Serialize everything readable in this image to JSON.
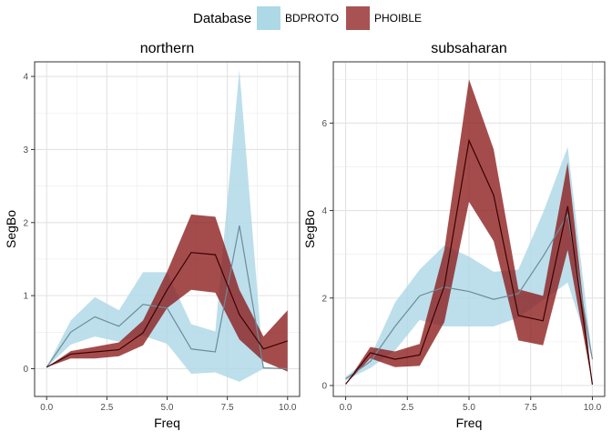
{
  "legend": {
    "title": "Database",
    "items": [
      {
        "label": "BDPROTO",
        "fill": "#add8e6",
        "line": "#6e8b99"
      },
      {
        "label": "PHOIBLE",
        "fill": "#8b1a1a",
        "line": "#3d0000"
      }
    ]
  },
  "chart_data": [
    {
      "type": "area",
      "title": "northern",
      "xlabel": "Freq",
      "ylabel": "SegBo",
      "xlim": [
        -0.5,
        10.5
      ],
      "ylim": [
        -0.38,
        4.2
      ],
      "xticks": [
        0,
        2.5,
        5,
        7.5,
        10
      ],
      "xtick_labels": [
        "0.0",
        "2.5",
        "5.0",
        "7.5",
        "10.0"
      ],
      "yticks": [
        0,
        1,
        2,
        3,
        4
      ],
      "ytick_labels": [
        "0",
        "1",
        "2",
        "3",
        "4"
      ],
      "grid": true,
      "x": [
        0,
        1,
        2,
        3,
        4,
        5,
        6,
        7,
        8,
        9,
        10
      ],
      "series": [
        {
          "name": "BDPROTO",
          "mean": [
            0.02,
            0.5,
            0.71,
            0.58,
            0.88,
            0.83,
            0.27,
            0.23,
            1.96,
            0.01,
            0.0
          ],
          "lower": [
            0.02,
            0.33,
            0.44,
            0.37,
            0.45,
            0.34,
            -0.07,
            -0.05,
            -0.18,
            0.0,
            0.0
          ],
          "upper": [
            0.02,
            0.66,
            0.98,
            0.8,
            1.32,
            1.32,
            0.61,
            0.51,
            4.09,
            0.02,
            0.0
          ]
        },
        {
          "name": "PHOIBLE",
          "mean": [
            0.02,
            0.2,
            0.23,
            0.26,
            0.49,
            1.08,
            1.59,
            1.56,
            0.74,
            0.27,
            0.38
          ],
          "lower": [
            0.02,
            0.14,
            0.14,
            0.17,
            0.32,
            0.83,
            1.08,
            1.04,
            0.4,
            0.1,
            -0.04
          ],
          "upper": [
            0.02,
            0.24,
            0.3,
            0.36,
            0.66,
            1.33,
            2.11,
            2.08,
            1.08,
            0.44,
            0.8
          ]
        }
      ]
    },
    {
      "type": "area",
      "title": "subsaharan",
      "xlabel": "Freq",
      "ylabel": "SegBo",
      "xlim": [
        -0.5,
        10.5
      ],
      "ylim": [
        -0.25,
        7.4
      ],
      "xticks": [
        0,
        2.5,
        5,
        7.5,
        10
      ],
      "xtick_labels": [
        "0.0",
        "2.5",
        "5.0",
        "7.5",
        "10.0"
      ],
      "yticks": [
        0,
        2,
        4,
        6
      ],
      "ytick_labels": [
        "0",
        "2",
        "4",
        "6"
      ],
      "grid": true,
      "x": [
        0,
        1,
        2,
        3,
        4,
        5,
        6,
        7,
        8,
        9,
        10
      ],
      "series": [
        {
          "name": "BDPROTO",
          "mean": [
            0.15,
            0.55,
            1.35,
            2.05,
            2.25,
            2.15,
            1.97,
            2.1,
            2.95,
            3.9,
            0.6
          ],
          "lower": [
            0.12,
            0.4,
            0.8,
            1.5,
            1.35,
            1.35,
            1.35,
            1.55,
            1.95,
            2.35,
            0.6
          ],
          "upper": [
            0.2,
            0.65,
            1.9,
            2.65,
            3.2,
            2.95,
            2.6,
            2.65,
            3.95,
            5.45,
            0.6
          ]
        },
        {
          "name": "PHOIBLE",
          "mean": [
            0.03,
            0.75,
            0.6,
            0.7,
            2.27,
            5.6,
            4.35,
            1.6,
            1.48,
            4.1,
            0.02
          ],
          "lower": [
            0.03,
            0.62,
            0.42,
            0.45,
            1.45,
            4.2,
            3.3,
            1.03,
            0.92,
            3.1,
            0.02
          ],
          "upper": [
            0.03,
            0.88,
            0.78,
            0.95,
            3.1,
            7.0,
            5.4,
            2.2,
            2.05,
            5.1,
            0.02
          ]
        }
      ]
    }
  ]
}
